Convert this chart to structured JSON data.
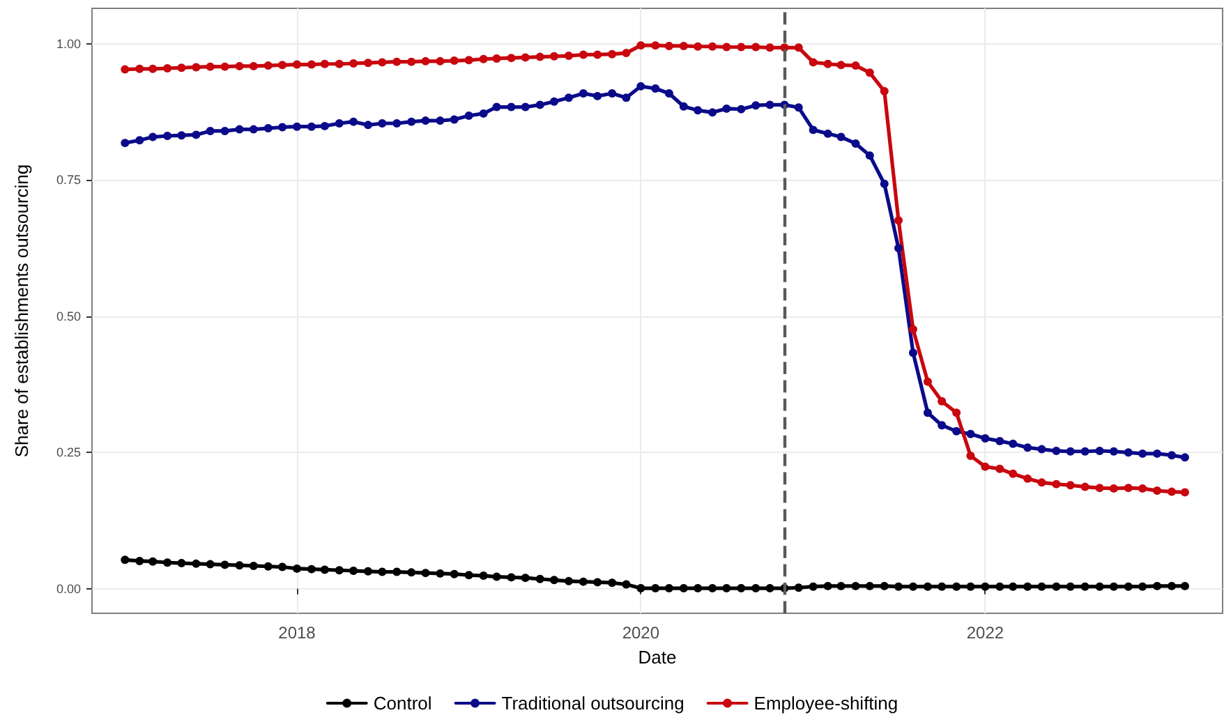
{
  "chart_data": {
    "type": "line",
    "xlabel": "Date",
    "ylabel": "Share of establishments outsourcing",
    "x": [
      "2017-01",
      "2017-02",
      "2017-03",
      "2017-04",
      "2017-05",
      "2017-06",
      "2017-07",
      "2017-08",
      "2017-09",
      "2017-10",
      "2017-11",
      "2017-12",
      "2018-01",
      "2018-02",
      "2018-03",
      "2018-04",
      "2018-05",
      "2018-06",
      "2018-07",
      "2018-08",
      "2018-09",
      "2018-10",
      "2018-11",
      "2018-12",
      "2019-01",
      "2019-02",
      "2019-03",
      "2019-04",
      "2019-05",
      "2019-06",
      "2019-07",
      "2019-08",
      "2019-09",
      "2019-10",
      "2019-11",
      "2019-12",
      "2020-01",
      "2020-02",
      "2020-03",
      "2020-04",
      "2020-05",
      "2020-06",
      "2020-07",
      "2020-08",
      "2020-09",
      "2020-10",
      "2020-11",
      "2020-12",
      "2021-01",
      "2021-02",
      "2021-03",
      "2021-04",
      "2021-05",
      "2021-06",
      "2021-07",
      "2021-08",
      "2021-09",
      "2021-10",
      "2021-11",
      "2021-12",
      "2022-01",
      "2022-02",
      "2022-03",
      "2022-04",
      "2022-05",
      "2022-06",
      "2022-07",
      "2022-08",
      "2022-09",
      "2022-10",
      "2022-11",
      "2022-12",
      "2023-01",
      "2023-02",
      "2023-03"
    ],
    "series": [
      {
        "name": "Control",
        "color": "#000000",
        "values": [
          0.053,
          0.051,
          0.05,
          0.048,
          0.047,
          0.046,
          0.045,
          0.044,
          0.043,
          0.042,
          0.041,
          0.04,
          0.037,
          0.036,
          0.035,
          0.034,
          0.033,
          0.032,
          0.031,
          0.031,
          0.03,
          0.029,
          0.028,
          0.027,
          0.025,
          0.024,
          0.022,
          0.021,
          0.02,
          0.018,
          0.016,
          0.014,
          0.013,
          0.012,
          0.011,
          0.008,
          0.001,
          0.001,
          0.001,
          0.001,
          0.001,
          0.001,
          0.001,
          0.001,
          0.001,
          0.001,
          0.001,
          0.002,
          0.004,
          0.005,
          0.005,
          0.005,
          0.005,
          0.005,
          0.004,
          0.004,
          0.004,
          0.004,
          0.004,
          0.004,
          0.004,
          0.004,
          0.004,
          0.004,
          0.004,
          0.004,
          0.004,
          0.004,
          0.004,
          0.004,
          0.004,
          0.004,
          0.005,
          0.005,
          0.005
        ]
      },
      {
        "name": "Traditional outsourcing",
        "color": "#0b0b8a",
        "values": [
          0.818,
          0.823,
          0.829,
          0.831,
          0.832,
          0.833,
          0.84,
          0.84,
          0.843,
          0.843,
          0.845,
          0.847,
          0.848,
          0.848,
          0.849,
          0.854,
          0.857,
          0.851,
          0.854,
          0.854,
          0.857,
          0.859,
          0.859,
          0.861,
          0.868,
          0.872,
          0.884,
          0.884,
          0.884,
          0.888,
          0.894,
          0.901,
          0.909,
          0.904,
          0.909,
          0.901,
          0.922,
          0.918,
          0.909,
          0.885,
          0.878,
          0.874,
          0.881,
          0.88,
          0.887,
          0.888,
          0.888,
          0.883,
          0.842,
          0.835,
          0.829,
          0.817,
          0.795,
          0.743,
          0.625,
          0.433,
          0.323,
          0.3,
          0.289,
          0.284,
          0.276,
          0.271,
          0.266,
          0.259,
          0.256,
          0.253,
          0.252,
          0.252,
          0.253,
          0.252,
          0.25,
          0.248,
          0.248,
          0.245,
          0.241
        ]
      },
      {
        "name": "Employee-shifting",
        "color": "#c8070e",
        "values": [
          0.953,
          0.954,
          0.954,
          0.955,
          0.956,
          0.957,
          0.958,
          0.958,
          0.959,
          0.959,
          0.96,
          0.961,
          0.962,
          0.962,
          0.963,
          0.963,
          0.964,
          0.965,
          0.966,
          0.967,
          0.967,
          0.968,
          0.968,
          0.969,
          0.97,
          0.972,
          0.973,
          0.974,
          0.975,
          0.976,
          0.977,
          0.978,
          0.98,
          0.98,
          0.981,
          0.983,
          0.997,
          0.997,
          0.996,
          0.996,
          0.995,
          0.995,
          0.994,
          0.994,
          0.994,
          0.993,
          0.993,
          0.993,
          0.966,
          0.963,
          0.961,
          0.96,
          0.947,
          0.913,
          0.676,
          0.476,
          0.38,
          0.344,
          0.323,
          0.244,
          0.224,
          0.22,
          0.211,
          0.202,
          0.195,
          0.192,
          0.19,
          0.187,
          0.185,
          0.184,
          0.185,
          0.184,
          0.18,
          0.178,
          0.177
        ]
      }
    ],
    "xlim": [
      "2016-10-23",
      "2023-05-20"
    ],
    "xticks": [
      "2018",
      "2020",
      "2022"
    ],
    "ylim": [
      -0.045,
      1.065
    ],
    "yticks": [
      {
        "value": 0,
        "label": "0.00"
      },
      {
        "value": 0.25,
        "label": "0.25"
      },
      {
        "value": 0.5,
        "label": "0.50"
      },
      {
        "value": 0.75,
        "label": "0.75"
      },
      {
        "value": 1,
        "label": "1.00"
      }
    ],
    "ref_lines": [
      {
        "axis": "x",
        "value": "2020-11",
        "color": "#595959",
        "line_style": "dashed"
      }
    ],
    "grid": true,
    "legend": "bottom",
    "marker": "circle",
    "line_style": "solid"
  }
}
